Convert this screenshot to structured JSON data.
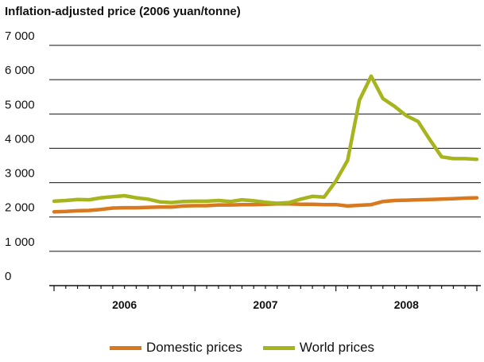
{
  "chart_data": {
    "type": "line",
    "title": "Inflation-adjusted price (2006 yuan/tonne)",
    "ylim": [
      0,
      7000
    ],
    "yticks": [
      0,
      1000,
      2000,
      3000,
      4000,
      5000,
      6000,
      7000
    ],
    "ytick_labels": [
      "0",
      "1 000",
      "2 000",
      "3 000",
      "4 000",
      "5 000",
      "6 000",
      "7 000"
    ],
    "x_groups": [
      "2006",
      "2007",
      "2008"
    ],
    "grid": "horizontal",
    "legend_position": "bottom",
    "x": [
      "2005-12",
      "2006-01",
      "2006-02",
      "2006-03",
      "2006-04",
      "2006-05",
      "2006-06",
      "2006-07",
      "2006-08",
      "2006-09",
      "2006-10",
      "2006-11",
      "2006-12",
      "2007-01",
      "2007-02",
      "2007-03",
      "2007-04",
      "2007-05",
      "2007-06",
      "2007-07",
      "2007-08",
      "2007-09",
      "2007-10",
      "2007-11",
      "2007-12",
      "2008-01",
      "2008-02",
      "2008-03",
      "2008-04",
      "2008-05",
      "2008-06",
      "2008-07",
      "2008-08",
      "2008-09",
      "2008-10",
      "2008-11",
      "2008-12"
    ],
    "series": [
      {
        "name": "Domestic prices",
        "color": "#d9791f",
        "values": [
          2150,
          2160,
          2180,
          2190,
          2220,
          2260,
          2270,
          2270,
          2280,
          2290,
          2290,
          2320,
          2330,
          2330,
          2350,
          2350,
          2360,
          2360,
          2370,
          2380,
          2380,
          2370,
          2370,
          2360,
          2360,
          2320,
          2340,
          2360,
          2450,
          2480,
          2490,
          2500,
          2510,
          2520,
          2530,
          2550,
          2560
        ]
      },
      {
        "name": "World prices",
        "color": "#a6b51e",
        "values": [
          2460,
          2480,
          2510,
          2500,
          2560,
          2590,
          2620,
          2560,
          2520,
          2440,
          2420,
          2450,
          2460,
          2460,
          2480,
          2450,
          2500,
          2470,
          2430,
          2400,
          2420,
          2520,
          2600,
          2580,
          3050,
          3650,
          5400,
          6100,
          5450,
          5220,
          4950,
          4780,
          4250,
          3750,
          3700,
          3700,
          3680
        ]
      }
    ]
  }
}
